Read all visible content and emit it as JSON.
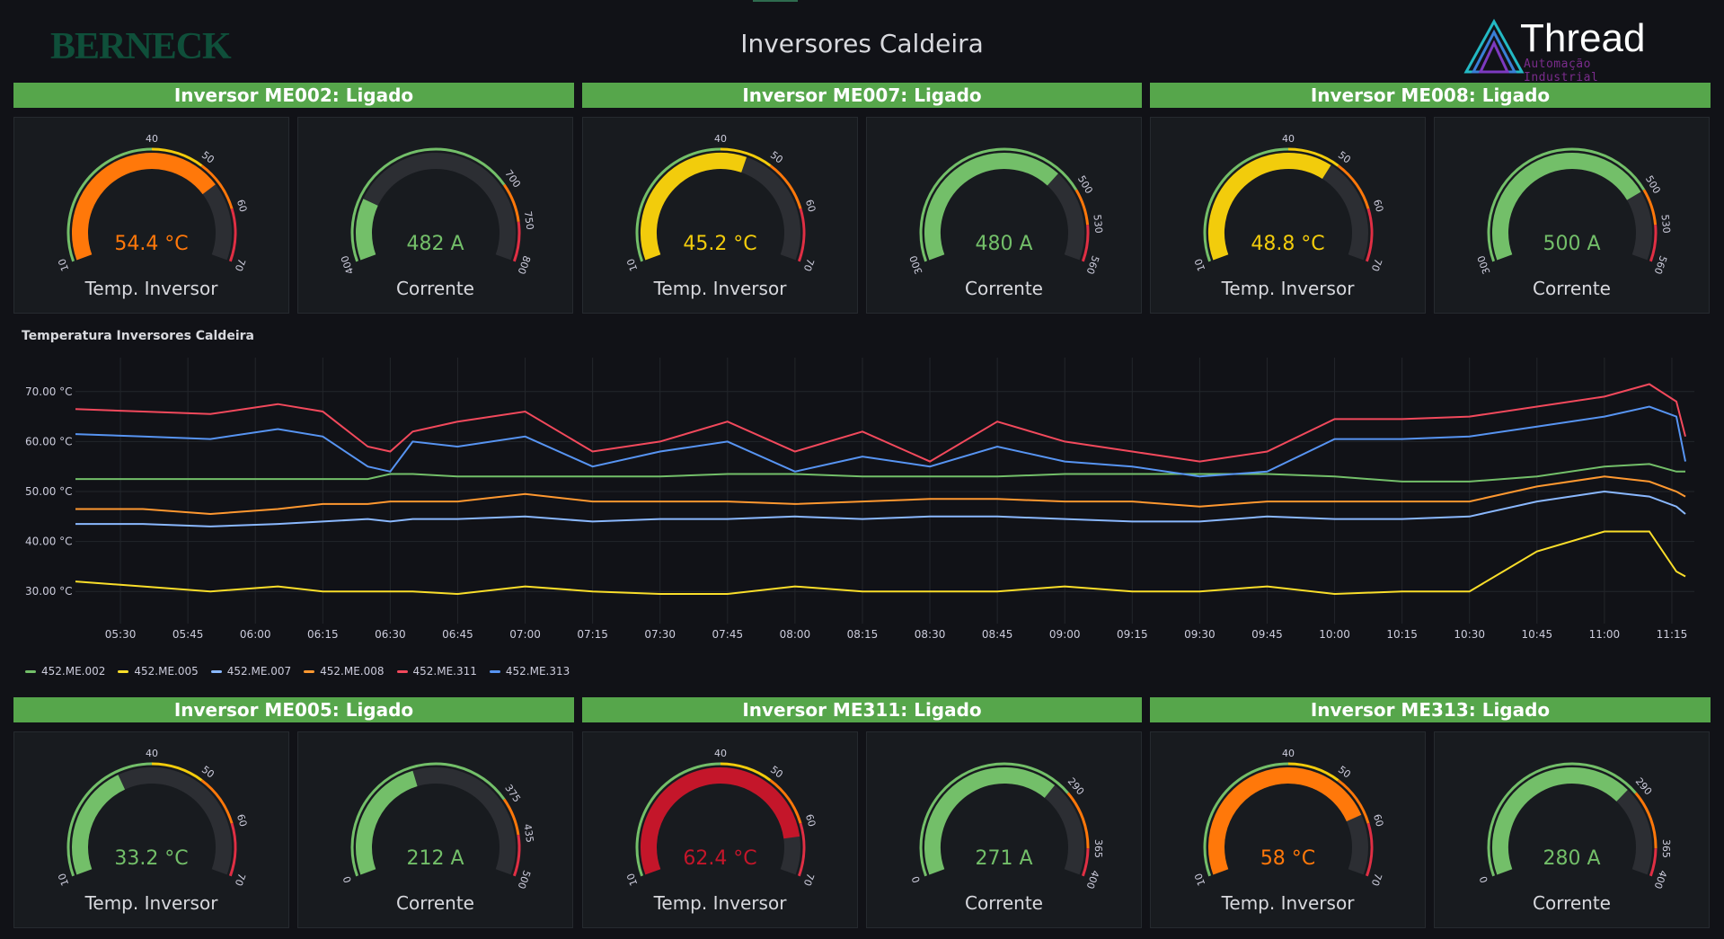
{
  "header": {
    "brand": "BERNECK",
    "title": "Inversores Caldeira",
    "logo_name": "Thread",
    "logo_sub": "Automação Industrial"
  },
  "colors": {
    "green": "#73bf69",
    "yellow": "#f2cc0c",
    "orange": "#ff780a",
    "red": "#e02f44",
    "header_green": "#56a64b"
  },
  "groups": [
    {
      "title": "Inversor ME002: Ligado",
      "temp": {
        "value": 54.4,
        "display": "54.4 °C",
        "label": "Temp. Inversor",
        "color": "#ff780a",
        "min": 10,
        "max": 70,
        "ticks": [
          10,
          40,
          50,
          60,
          70
        ]
      },
      "current": {
        "value": 482,
        "display": "482 A",
        "label": "Corrente",
        "color": "#73bf69",
        "min": 400,
        "max": 800,
        "ticks": [
          400,
          700,
          750,
          800
        ]
      }
    },
    {
      "title": "Inversor ME007: Ligado",
      "temp": {
        "value": 45.2,
        "display": "45.2 °C",
        "label": "Temp. Inversor",
        "color": "#f2cc0c",
        "min": 10,
        "max": 70,
        "ticks": [
          10,
          40,
          50,
          60,
          70
        ]
      },
      "current": {
        "value": 480,
        "display": "480 A",
        "label": "Corrente",
        "color": "#73bf69",
        "min": 300,
        "max": 560,
        "ticks": [
          300,
          500,
          530,
          560
        ]
      }
    },
    {
      "title": "Inversor ME008: Ligado",
      "temp": {
        "value": 48.8,
        "display": "48.8 °C",
        "label": "Temp. Inversor",
        "color": "#f2cc0c",
        "min": 10,
        "max": 70,
        "ticks": [
          10,
          40,
          50,
          60,
          70
        ]
      },
      "current": {
        "value": 500,
        "display": "500 A",
        "label": "Corrente",
        "color": "#73bf69",
        "min": 300,
        "max": 560,
        "ticks": [
          300,
          500,
          530,
          560
        ]
      }
    },
    {
      "title": "Inversor ME005: Ligado",
      "temp": {
        "value": 33.2,
        "display": "33.2 °C",
        "label": "Temp. Inversor",
        "color": "#73bf69",
        "min": 10,
        "max": 70,
        "ticks": [
          10,
          40,
          50,
          60,
          70
        ]
      },
      "current": {
        "value": 212,
        "display": "212 A",
        "label": "Corrente",
        "color": "#73bf69",
        "min": 0,
        "max": 500,
        "ticks": [
          0,
          375,
          435,
          500
        ]
      }
    },
    {
      "title": "Inversor ME311: Ligado",
      "temp": {
        "value": 62.4,
        "display": "62.4 °C",
        "label": "Temp. Inversor",
        "color": "#c4162a",
        "min": 10,
        "max": 70,
        "ticks": [
          10,
          40,
          50,
          60,
          70
        ]
      },
      "current": {
        "value": 271,
        "display": "271 A",
        "label": "Corrente",
        "color": "#73bf69",
        "min": 0,
        "max": 400,
        "ticks": [
          0,
          290,
          365,
          400
        ]
      }
    },
    {
      "title": "Inversor ME313: Ligado",
      "temp": {
        "value": 58,
        "display": "58 °C",
        "label": "Temp. Inversor",
        "color": "#ff780a",
        "min": 10,
        "max": 70,
        "ticks": [
          10,
          40,
          50,
          60,
          70
        ]
      },
      "current": {
        "value": 280,
        "display": "280 A",
        "label": "Corrente",
        "color": "#73bf69",
        "min": 0,
        "max": 400,
        "ticks": [
          0,
          290,
          365,
          400
        ]
      }
    }
  ],
  "chart_data": {
    "type": "line",
    "title": "Temperatura Inversores Caldeira",
    "x_ticks": [
      "05:30",
      "05:45",
      "06:00",
      "06:15",
      "06:30",
      "06:45",
      "07:00",
      "07:15",
      "07:30",
      "07:45",
      "08:00",
      "08:15",
      "08:30",
      "08:45",
      "09:00",
      "09:15",
      "09:30",
      "09:45",
      "10:00",
      "10:15",
      "10:30",
      "10:45",
      "11:00",
      "11:15"
    ],
    "y_ticks": [
      "30.00 °C",
      "40.00 °C",
      "50.00 °C",
      "60.00 °C",
      "70.00 °C"
    ],
    "y_range": [
      25,
      75
    ],
    "x_range_minutes": [
      320,
      680
    ],
    "x_minutes": [
      320,
      335,
      350,
      365,
      375,
      385,
      390,
      395,
      405,
      420,
      435,
      450,
      465,
      480,
      495,
      510,
      525,
      540,
      555,
      570,
      585,
      600,
      615,
      630,
      645,
      660,
      670,
      676,
      678
    ],
    "series": [
      {
        "name": "452.ME.002",
        "color": "#73bf69",
        "values": [
          52.5,
          52.5,
          52.5,
          52.5,
          52.5,
          52.5,
          53.5,
          53.5,
          53,
          53,
          53,
          53,
          53.5,
          53.5,
          53,
          53,
          53,
          53.5,
          53.5,
          53.5,
          53.5,
          53,
          52,
          52,
          53,
          55,
          55.5,
          54,
          54
        ]
      },
      {
        "name": "452.ME.005",
        "color": "#fade2a",
        "values": [
          32,
          31,
          30,
          31,
          30,
          30,
          30,
          30,
          29.5,
          31,
          30,
          29.5,
          29.5,
          31,
          30,
          30,
          30,
          31,
          30,
          30,
          31,
          29.5,
          30,
          30,
          38,
          42,
          42,
          34,
          33
        ]
      },
      {
        "name": "452.ME.007",
        "color": "#8ab8ff",
        "values": [
          43.5,
          43.5,
          43,
          43.5,
          44,
          44.5,
          44,
          44.5,
          44.5,
          45,
          44,
          44.5,
          44.5,
          45,
          44.5,
          45,
          45,
          44.5,
          44,
          44,
          45,
          44.5,
          44.5,
          45,
          48,
          50,
          49,
          47,
          45.5
        ]
      },
      {
        "name": "452.ME.008",
        "color": "#ff9830",
        "values": [
          46.5,
          46.5,
          45.5,
          46.5,
          47.5,
          47.5,
          48,
          48,
          48,
          49.5,
          48,
          48,
          48,
          47.5,
          48,
          48.5,
          48.5,
          48,
          48,
          47,
          48,
          48,
          48,
          48,
          51,
          53,
          52,
          50,
          49
        ]
      },
      {
        "name": "452.ME.311",
        "color": "#f2495c",
        "values": [
          66.5,
          66,
          65.5,
          67.5,
          66,
          59,
          58,
          62,
          64,
          66,
          58,
          60,
          64,
          58,
          62,
          56,
          64,
          60,
          58,
          56,
          58,
          64.5,
          64.5,
          65,
          67,
          69,
          71.5,
          68,
          61
        ]
      },
      {
        "name": "452.ME.313",
        "color": "#5794f2",
        "values": [
          61.5,
          61,
          60.5,
          62.5,
          61,
          55,
          54,
          60,
          59,
          61,
          55,
          58,
          60,
          54,
          57,
          55,
          59,
          56,
          55,
          53,
          54,
          60.5,
          60.5,
          61,
          63,
          65,
          67,
          65,
          56
        ]
      }
    ]
  }
}
